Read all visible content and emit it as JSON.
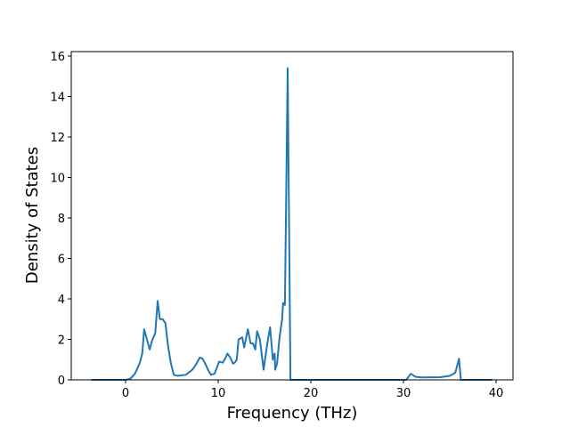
{
  "chart_data": {
    "type": "line",
    "xlabel": "Frequency (THz)",
    "ylabel": "Density of States",
    "x": [
      -3.7,
      0,
      0.5,
      1.0,
      1.5,
      1.8,
      2.0,
      2.3,
      2.6,
      2.9,
      3.2,
      3.46,
      3.7,
      4.0,
      4.3,
      4.6,
      4.9,
      5.2,
      5.6,
      6.5,
      7.2,
      7.6,
      8.0,
      8.3,
      8.6,
      8.9,
      9.2,
      9.6,
      10.1,
      10.5,
      10.8,
      11.0,
      11.3,
      11.6,
      11.8,
      12.0,
      12.2,
      12.6,
      12.8,
      13.2,
      13.5,
      13.75,
      14.0,
      14.2,
      14.5,
      14.9,
      15.3,
      15.6,
      15.9,
      16.1,
      16.15,
      16.35,
      16.6,
      16.9,
      17.0,
      17.2,
      17.5,
      17.8,
      30.3,
      30.8,
      31.3,
      32.0,
      34.0,
      35.0,
      35.6,
      36.0,
      36.2,
      39.6
    ],
    "values": [
      0,
      0,
      0.05,
      0.3,
      0.8,
      1.3,
      2.5,
      2.0,
      1.5,
      2.0,
      2.3,
      3.9,
      3.0,
      3.0,
      2.8,
      1.6,
      0.8,
      0.25,
      0.2,
      0.25,
      0.5,
      0.75,
      1.1,
      1.05,
      0.8,
      0.5,
      0.25,
      0.3,
      0.9,
      0.85,
      1.1,
      1.3,
      1.1,
      0.8,
      0.85,
      1.0,
      2.0,
      2.1,
      1.6,
      2.5,
      1.8,
      1.8,
      1.5,
      2.4,
      2.0,
      0.5,
      1.8,
      2.6,
      1.0,
      1.3,
      0.5,
      0.8,
      2.0,
      3.0,
      3.8,
      3.7,
      15.4,
      0,
      0,
      0.3,
      0.15,
      0.12,
      0.13,
      0.2,
      0.35,
      1.05,
      0,
      0
    ],
    "color": "#1f77b4",
    "xlim": [
      -5.87,
      41.83
    ],
    "ylim": [
      0,
      16.22
    ],
    "xticks": [
      0,
      10,
      20,
      30,
      40
    ],
    "yticks": [
      0,
      2,
      4,
      6,
      8,
      10,
      12,
      14,
      16
    ]
  }
}
